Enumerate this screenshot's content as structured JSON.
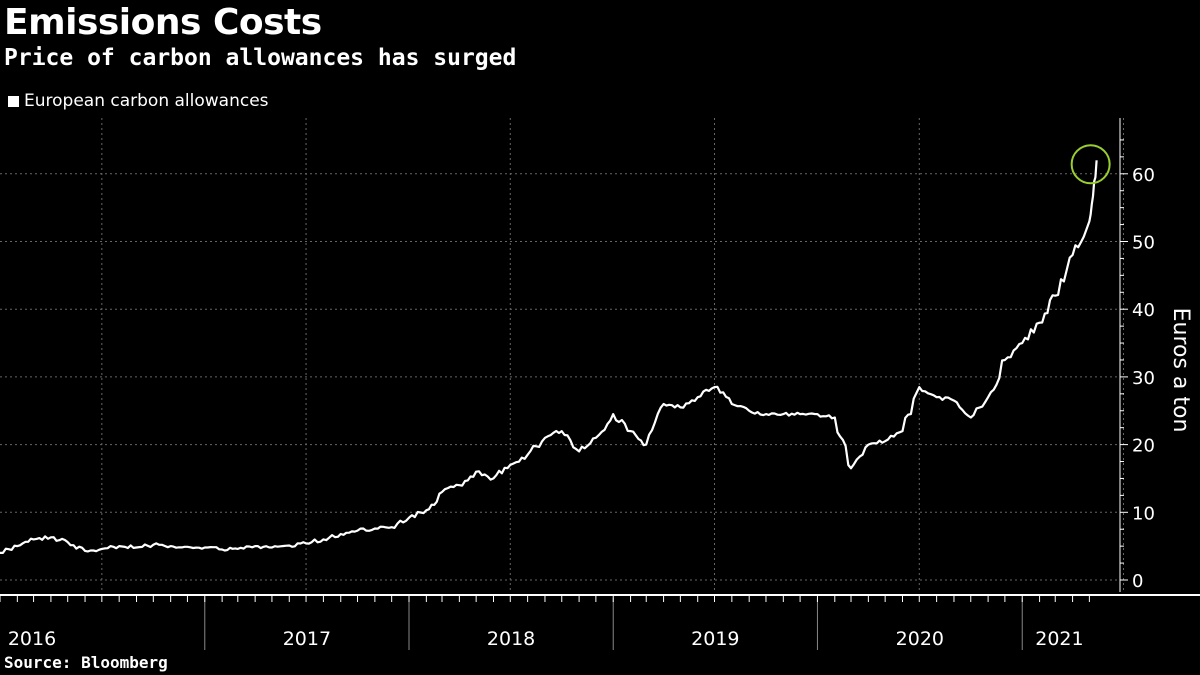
{
  "header": {
    "title": "Emissions Costs",
    "subtitle": "Price of carbon allowances has surged"
  },
  "source": "Source: Bloomberg",
  "colors": {
    "background": "#000000",
    "line": "#ffffff",
    "grid": "#777777",
    "highlight": "#9acd32"
  },
  "chart_data": {
    "type": "line",
    "title": "Emissions Costs",
    "subtitle": "Price of carbon allowances has surged",
    "ylabel": "Euros a ton",
    "xlabel": "",
    "ylim": [
      0,
      68
    ],
    "y_ticks": [
      0,
      10,
      20,
      30,
      40,
      50,
      60
    ],
    "x_ticks": [
      "2016",
      "2017",
      "2018",
      "2019",
      "2020",
      "2021"
    ],
    "grid": true,
    "legend_position": "top-left",
    "annotations": [
      "circle highlighting latest value"
    ],
    "series": [
      {
        "name": "European carbon allowances",
        "x": [
          "2016-01-01",
          "2016-02-01",
          "2016-03-01",
          "2016-04-01",
          "2016-05-01",
          "2016-06-01",
          "2016-07-01",
          "2016-08-01",
          "2016-09-01",
          "2016-10-01",
          "2016-11-01",
          "2016-12-01",
          "2017-01-01",
          "2017-02-01",
          "2017-03-01",
          "2017-04-01",
          "2017-05-01",
          "2017-06-01",
          "2017-07-01",
          "2017-08-01",
          "2017-09-01",
          "2017-10-01",
          "2017-11-01",
          "2017-12-01",
          "2018-01-01",
          "2018-02-01",
          "2018-03-01",
          "2018-04-01",
          "2018-05-01",
          "2018-06-01",
          "2018-07-01",
          "2018-08-01",
          "2018-09-01",
          "2018-10-01",
          "2018-11-01",
          "2018-12-01",
          "2019-01-01",
          "2019-02-01",
          "2019-03-01",
          "2019-04-01",
          "2019-05-01",
          "2019-06-01",
          "2019-07-01",
          "2019-08-01",
          "2019-09-01",
          "2019-10-01",
          "2019-11-01",
          "2019-12-01",
          "2020-01-01",
          "2020-02-01",
          "2020-03-01",
          "2020-04-01",
          "2020-05-01",
          "2020-06-01",
          "2020-07-01",
          "2020-08-01",
          "2020-09-01",
          "2020-10-01",
          "2020-11-01",
          "2020-12-01",
          "2021-01-01",
          "2021-02-01",
          "2021-03-01",
          "2021-04-01",
          "2021-05-01",
          "2021-05-14"
        ],
        "values": [
          4.0,
          5.0,
          6.0,
          6.3,
          5.6,
          4.3,
          4.6,
          5.0,
          4.8,
          5.2,
          5.0,
          4.9,
          4.8,
          4.5,
          4.6,
          5.0,
          4.8,
          5.1,
          5.4,
          6.0,
          6.8,
          7.3,
          7.6,
          7.8,
          9.2,
          10.3,
          13.0,
          14.0,
          16.0,
          15.0,
          17.0,
          18.5,
          21.0,
          22.0,
          19.0,
          21.0,
          24.5,
          22.0,
          20.0,
          26.0,
          25.5,
          27.0,
          28.5,
          26.0,
          25.0,
          24.5,
          24.5,
          24.5,
          24.5,
          24.0,
          16.5,
          20.0,
          20.5,
          22.0,
          28.5,
          27.0,
          26.5,
          24.0,
          27.0,
          32.5,
          35.0,
          38.0,
          42.0,
          48.0,
          53.0,
          62.0
        ]
      }
    ]
  }
}
